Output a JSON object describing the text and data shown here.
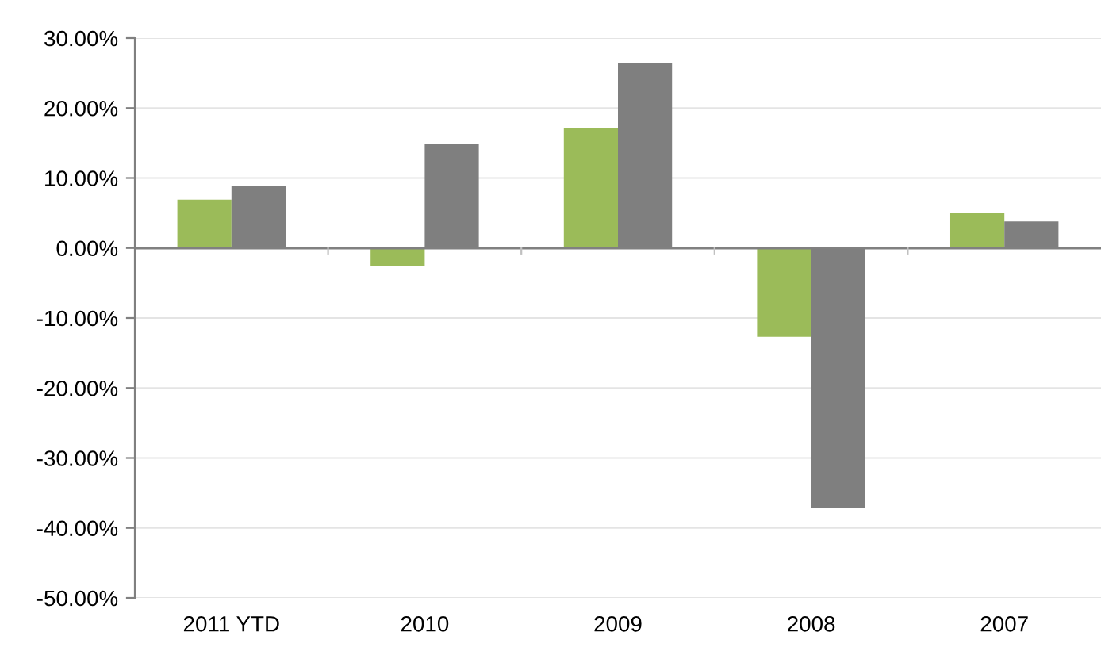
{
  "chart_data": {
    "type": "bar",
    "categories": [
      "2011 YTD",
      "2010",
      "2009",
      "2008",
      "2007"
    ],
    "series": [
      {
        "color": "#9bbb59",
        "values": [
          6.9,
          -2.6,
          17.1,
          -12.7,
          5.0
        ]
      },
      {
        "color": "#7f7f7f",
        "values": [
          8.8,
          14.9,
          26.4,
          -37.1,
          3.8
        ]
      }
    ],
    "ylim": [
      -50,
      30
    ],
    "yticks": [
      {
        "value": 30,
        "label": "30.00%"
      },
      {
        "value": 20,
        "label": "20.00%"
      },
      {
        "value": 10,
        "label": "10.00%"
      },
      {
        "value": 0,
        "label": "0.00%"
      },
      {
        "value": -10,
        "label": "-10.00%"
      },
      {
        "value": -20,
        "label": "-20.00%"
      },
      {
        "value": -30,
        "label": "-30.00%"
      },
      {
        "value": -40,
        "label": "-40.00%"
      },
      {
        "value": -50,
        "label": "-50.00%"
      }
    ],
    "grid": "y",
    "legend": false
  }
}
